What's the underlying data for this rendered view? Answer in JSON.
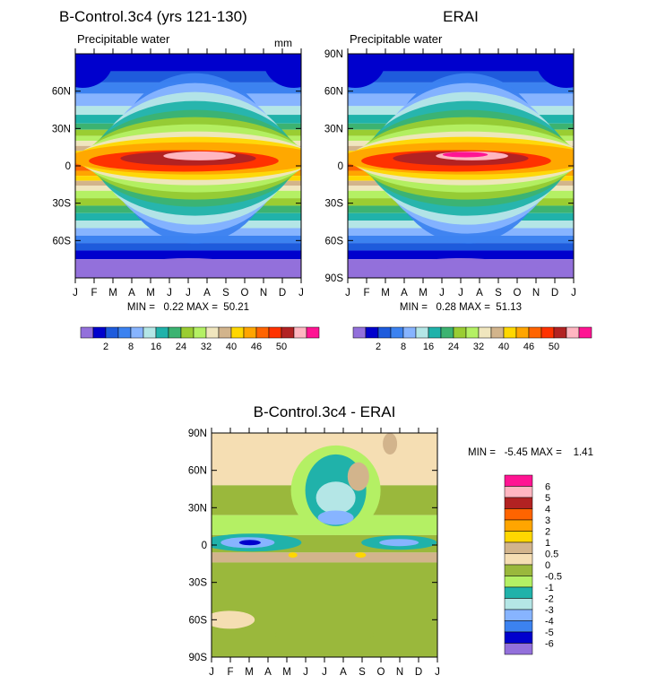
{
  "chart_data": [
    {
      "type": "heatmap",
      "title": "B-Control.3c4 (yrs 121-130)",
      "subtitle": "Precipitable water",
      "units": "mm",
      "xlabel": "",
      "ylabel": "",
      "x_categories": [
        "J",
        "F",
        "M",
        "A",
        "M",
        "J",
        "J",
        "A",
        "S",
        "O",
        "N",
        "D",
        "J"
      ],
      "y_ticks": [
        "60N",
        "30N",
        "0",
        "30S",
        "60S"
      ],
      "ylim": [
        -90,
        90
      ],
      "min": "0.22",
      "max": "50.21",
      "stats_text": "MIN =   0.22 MAX =  50.21",
      "colorbar": {
        "labels": [
          "2",
          "8",
          "16",
          "24",
          "32",
          "40",
          "46",
          "50"
        ],
        "colors": [
          "#9370db",
          "#0000cd",
          "#1e5bdc",
          "#3c82f0",
          "#87b4ff",
          "#b4e6e6",
          "#20b2aa",
          "#3cb371",
          "#9acd32",
          "#b4f064",
          "#f0e6be",
          "#d2b48c",
          "#ffd700",
          "#ffa500",
          "#ff6400",
          "#ff3200",
          "#b22222",
          "#ffb6c1",
          "#ff1493"
        ]
      }
    },
    {
      "type": "heatmap",
      "title": "ERAI",
      "subtitle": "Precipitable water",
      "xlabel": "",
      "ylabel": "",
      "x_categories": [
        "J",
        "F",
        "M",
        "A",
        "M",
        "J",
        "J",
        "A",
        "S",
        "O",
        "N",
        "D",
        "J"
      ],
      "y_ticks": [
        "90N",
        "60N",
        "30N",
        "0",
        "30S",
        "60S",
        "90S"
      ],
      "ylim": [
        -90,
        90
      ],
      "min": "0.28",
      "max": "51.13",
      "stats_text": "MIN =   0.28 MAX =  51.13",
      "colorbar": {
        "labels": [
          "2",
          "8",
          "16",
          "24",
          "32",
          "40",
          "46",
          "50"
        ]
      }
    },
    {
      "type": "heatmap",
      "title": "B-Control.3c4 - ERAI",
      "xlabel": "",
      "ylabel": "",
      "x_categories": [
        "J",
        "F",
        "M",
        "A",
        "M",
        "J",
        "J",
        "A",
        "S",
        "O",
        "N",
        "D",
        "J"
      ],
      "y_ticks": [
        "90N",
        "60N",
        "30N",
        "0",
        "30S",
        "60S",
        "90S"
      ],
      "ylim": [
        -90,
        90
      ],
      "min": "-5.45",
      "max": "1.41",
      "stats_text": "MIN =   -5.45 MAX =    1.41",
      "colorbar": {
        "labels": [
          "6",
          "5",
          "4",
          "3",
          "2",
          "1",
          "0.5",
          "0",
          "-0.5",
          "-1",
          "-2",
          "-3",
          "-4",
          "-5",
          "-6"
        ],
        "colors": [
          "#ff1493",
          "#ffb6c1",
          "#b22222",
          "#ff6400",
          "#ffa500",
          "#ffd700",
          "#d2b48c",
          "#f5deb3",
          "#9ab83c",
          "#b4f064",
          "#20b2aa",
          "#b4e6e6",
          "#87b4ff",
          "#3c82f0",
          "#0000cd",
          "#9370db"
        ]
      }
    }
  ]
}
